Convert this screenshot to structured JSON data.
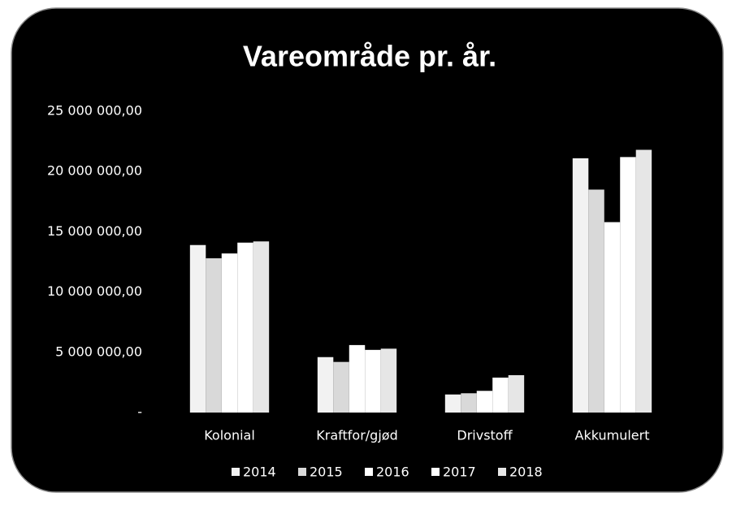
{
  "chart_data": {
    "type": "bar",
    "title": "Vareområde pr. år.",
    "categories": [
      "Kolonial",
      "Kraftfor/gjød",
      "Drivstoff",
      "Akkumulert"
    ],
    "series": [
      {
        "name": "2014",
        "color": "#f2f2f2",
        "values": [
          13900000,
          4600000,
          1500000,
          21100000
        ]
      },
      {
        "name": "2015",
        "color": "#d9d9d9",
        "values": [
          12800000,
          4200000,
          1600000,
          18500000
        ]
      },
      {
        "name": "2016",
        "color": "#ffffff",
        "values": [
          13200000,
          5600000,
          1800000,
          15800000
        ]
      },
      {
        "name": "2017",
        "color": "#ffffff",
        "values": [
          14100000,
          5200000,
          2900000,
          21200000
        ]
      },
      {
        "name": "2018",
        "color": "#e6e6e6",
        "values": [
          14200000,
          5300000,
          3100000,
          21800000
        ]
      }
    ],
    "ylim": [
      0,
      25000000
    ],
    "yticks": [
      {
        "value": 0,
        "label": "-"
      },
      {
        "value": 5000000,
        "label": "5 000 000,00"
      },
      {
        "value": 10000000,
        "label": "10 000 000,00"
      },
      {
        "value": 15000000,
        "label": "15 000 000,00"
      },
      {
        "value": 20000000,
        "label": "20 000 000,00"
      },
      {
        "value": 25000000,
        "label": "25 000 000,00"
      }
    ],
    "grid": false,
    "legend": "bottom"
  }
}
